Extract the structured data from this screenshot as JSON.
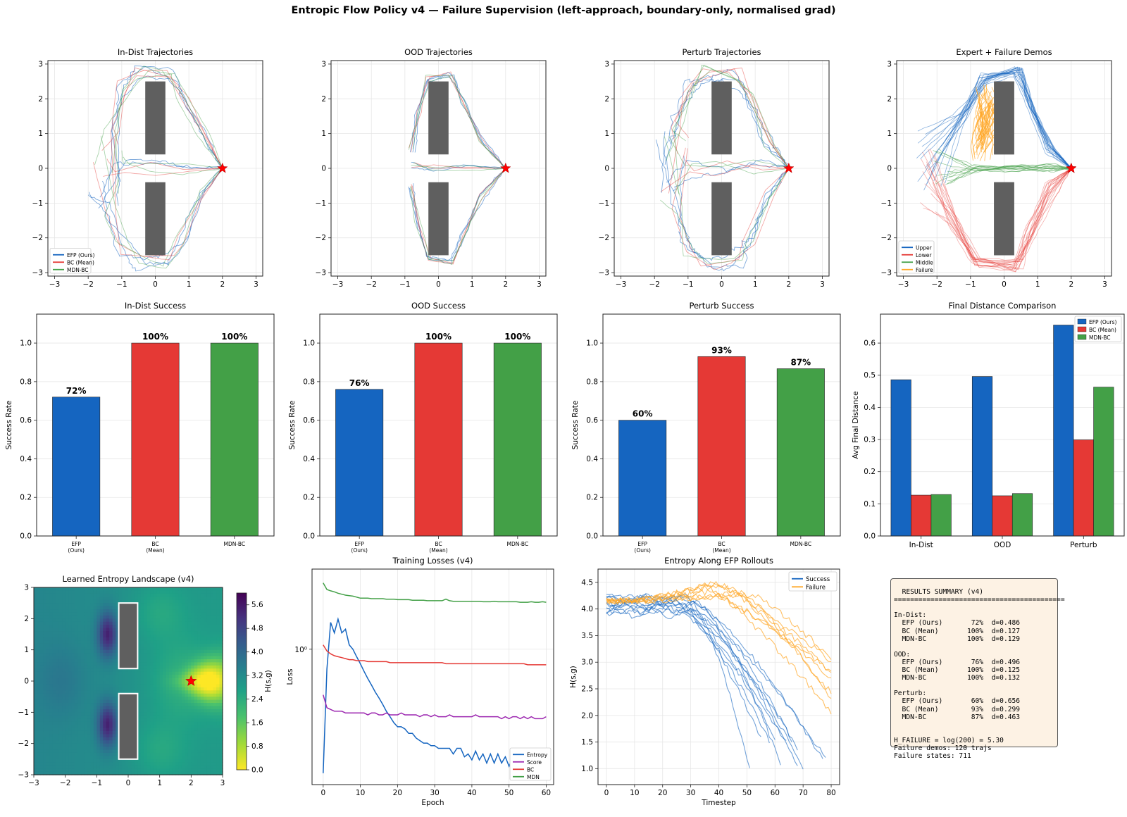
{
  "figure_title": "Entropic Flow Policy v4 — Failure Supervision (left-approach, boundary-only, normalised grad)",
  "colors": {
    "efp": "#1565c0",
    "bc": "#e53935",
    "mdn": "#43a047",
    "failure": "#ffa726",
    "obstacle": "#5f5f5f",
    "goal": "#ff0000",
    "summary_bg": "#fdf2e4",
    "mdn_loss": "#43a047",
    "score_loss": "#9c27b0"
  },
  "chart_data": [
    {
      "id": "indist-traj",
      "type": "line",
      "title": "In-Dist Trajectories",
      "xlim": [
        -3.2,
        3.2
      ],
      "ylim": [
        -3.1,
        3.1
      ],
      "xticks": [
        "−3",
        "−2",
        "−1",
        "0",
        "1",
        "2",
        "3"
      ],
      "xtick_values": [
        -3,
        -2,
        -1,
        0,
        1,
        2,
        3
      ],
      "yticks": [
        "−3",
        "−2",
        "−1",
        "0",
        "1",
        "2",
        "3"
      ],
      "ytick_values": [
        -3,
        -2,
        -1,
        0,
        1,
        2,
        3
      ],
      "grid": true,
      "legend": [
        "EFP (Ours)",
        "BC (Mean)",
        "MDN-BC"
      ],
      "legend_position": "lower-left",
      "goal": [
        2,
        0
      ],
      "obstacles": [
        [
          -0.3,
          0.4,
          0.6,
          2.1
        ],
        [
          -0.3,
          -2.5,
          0.6,
          2.1
        ]
      ]
    },
    {
      "id": "ood-traj",
      "type": "line",
      "title": "OOD Trajectories",
      "xlim": [
        -3.2,
        3.2
      ],
      "ylim": [
        -3.1,
        3.1
      ],
      "xticks": [
        "−3",
        "−2",
        "−1",
        "0",
        "1",
        "2",
        "3"
      ],
      "xtick_values": [
        -3,
        -2,
        -1,
        0,
        1,
        2,
        3
      ],
      "yticks": [
        "−3",
        "−2",
        "−1",
        "0",
        "1",
        "2",
        "3"
      ],
      "ytick_values": [
        -3,
        -2,
        -1,
        0,
        1,
        2,
        3
      ],
      "grid": true,
      "goal": [
        2,
        0
      ],
      "obstacles": [
        [
          -0.3,
          0.4,
          0.6,
          2.1
        ],
        [
          -0.3,
          -2.5,
          0.6,
          2.1
        ]
      ]
    },
    {
      "id": "perturb-traj",
      "type": "line",
      "title": "Perturb Trajectories",
      "xlim": [
        -3.2,
        3.2
      ],
      "ylim": [
        -3.1,
        3.1
      ],
      "xticks": [
        "−3",
        "−2",
        "−1",
        "0",
        "1",
        "2",
        "3"
      ],
      "xtick_values": [
        -3,
        -2,
        -1,
        0,
        1,
        2,
        3
      ],
      "yticks": [
        "−3",
        "−2",
        "−1",
        "0",
        "1",
        "2",
        "3"
      ],
      "ytick_values": [
        -3,
        -2,
        -1,
        0,
        1,
        2,
        3
      ],
      "grid": true,
      "goal": [
        2,
        0
      ],
      "obstacles": [
        [
          -0.3,
          0.4,
          0.6,
          2.1
        ],
        [
          -0.3,
          -2.5,
          0.6,
          2.1
        ]
      ]
    },
    {
      "id": "demos",
      "type": "line",
      "title": "Expert + Failure Demos",
      "xlim": [
        -3.2,
        3.2
      ],
      "ylim": [
        -3.1,
        3.1
      ],
      "xticks": [
        "−3",
        "−2",
        "−1",
        "0",
        "1",
        "2",
        "3"
      ],
      "xtick_values": [
        -3,
        -2,
        -1,
        0,
        1,
        2,
        3
      ],
      "yticks": [
        "−3",
        "−2",
        "−1",
        "0",
        "1",
        "2",
        "3"
      ],
      "ytick_values": [
        -3,
        -2,
        -1,
        0,
        1,
        2,
        3
      ],
      "grid": true,
      "legend": [
        "Upper",
        "Lower",
        "Middle",
        "Failure"
      ],
      "legend_position": "lower-left",
      "goal": [
        2,
        0
      ],
      "obstacles": [
        [
          -0.3,
          0.4,
          0.6,
          2.1
        ],
        [
          -0.3,
          -2.5,
          0.6,
          2.1
        ]
      ]
    },
    {
      "id": "indist-success",
      "type": "bar",
      "title": "In-Dist Success",
      "categories": [
        [
          "EFP",
          "(Ours)"
        ],
        [
          "BC",
          "(Mean)"
        ],
        [
          "MDN-BC"
        ]
      ],
      "values": [
        0.72,
        1.0,
        1.0
      ],
      "labels": [
        "72%",
        "100%",
        "100%"
      ],
      "ylabel": "Success Rate",
      "ylim": [
        0,
        1.15
      ],
      "yticks": [
        "0.0",
        "0.2",
        "0.4",
        "0.6",
        "0.8",
        "1.0"
      ],
      "ytick_values": [
        0,
        0.2,
        0.4,
        0.6,
        0.8,
        1.0
      ],
      "grid": true
    },
    {
      "id": "ood-success",
      "type": "bar",
      "title": "OOD Success",
      "categories": [
        [
          "EFP",
          "(Ours)"
        ],
        [
          "BC",
          "(Mean)"
        ],
        [
          "MDN-BC"
        ]
      ],
      "values": [
        0.76,
        1.0,
        1.0
      ],
      "labels": [
        "76%",
        "100%",
        "100%"
      ],
      "ylabel": "Success Rate",
      "ylim": [
        0,
        1.15
      ],
      "yticks": [
        "0.0",
        "0.2",
        "0.4",
        "0.6",
        "0.8",
        "1.0"
      ],
      "ytick_values": [
        0,
        0.2,
        0.4,
        0.6,
        0.8,
        1.0
      ],
      "grid": true
    },
    {
      "id": "perturb-success",
      "type": "bar",
      "title": "Perturb Success",
      "categories": [
        [
          "EFP",
          "(Ours)"
        ],
        [
          "BC",
          "(Mean)"
        ],
        [
          "MDN-BC"
        ]
      ],
      "values": [
        0.6,
        0.93,
        0.867
      ],
      "labels": [
        "60%",
        "93%",
        "87%"
      ],
      "ylabel": "Success Rate",
      "ylim": [
        0,
        1.15
      ],
      "yticks": [
        "0.0",
        "0.2",
        "0.4",
        "0.6",
        "0.8",
        "1.0"
      ],
      "ytick_values": [
        0,
        0.2,
        0.4,
        0.6,
        0.8,
        1.0
      ],
      "grid": true
    },
    {
      "id": "final-distance",
      "type": "bar",
      "title": "Final Distance Comparison",
      "categories": [
        "In-Dist",
        "OOD",
        "Perturb"
      ],
      "series": [
        {
          "name": "EFP (Ours)",
          "values": [
            0.486,
            0.496,
            0.656
          ]
        },
        {
          "name": "BC (Mean)",
          "values": [
            0.127,
            0.125,
            0.299
          ]
        },
        {
          "name": "MDN-BC",
          "values": [
            0.129,
            0.132,
            0.463
          ]
        }
      ],
      "ylabel": "Avg Final Distance",
      "ylim": [
        0,
        0.69
      ],
      "yticks": [
        "0.0",
        "0.1",
        "0.2",
        "0.3",
        "0.4",
        "0.5",
        "0.6"
      ],
      "ytick_values": [
        0,
        0.1,
        0.2,
        0.3,
        0.4,
        0.5,
        0.6
      ],
      "grid": true,
      "legend_position": "upper-right"
    },
    {
      "id": "entropy-landscape",
      "type": "heatmap",
      "title": "Learned Entropy Landscape (v4)",
      "xlim": [
        -3,
        3
      ],
      "ylim": [
        -3,
        3
      ],
      "xticks": [
        "−3",
        "−2",
        "−1",
        "0",
        "1",
        "2",
        "3"
      ],
      "xtick_values": [
        -3,
        -2,
        -1,
        0,
        1,
        2,
        3
      ],
      "yticks": [
        "−3",
        "−2",
        "−1",
        "0",
        "1",
        "2",
        "3"
      ],
      "ytick_values": [
        -3,
        -2,
        -1,
        0,
        1,
        2,
        3
      ],
      "colorbar_label": "H(s,g)",
      "colorbar_range": [
        0,
        6.0
      ],
      "colorbar_ticks": [
        "0.0",
        "0.8",
        "1.6",
        "2.4",
        "3.2",
        "4.0",
        "4.8",
        "5.6"
      ],
      "colorbar_tick_values": [
        0,
        0.8,
        1.6,
        2.4,
        3.2,
        4.0,
        4.8,
        5.6
      ],
      "goal": [
        2,
        0
      ],
      "obstacles": [
        [
          -0.3,
          0.4,
          0.6,
          2.1
        ],
        [
          -0.3,
          -2.5,
          0.6,
          2.1
        ]
      ]
    },
    {
      "id": "training-losses",
      "type": "line",
      "title": "Training Losses (v4)",
      "xlabel": "Epoch",
      "ylabel": "Loss",
      "log_y": true,
      "xlim": [
        -3,
        62
      ],
      "xticks": [
        "0",
        "10",
        "20",
        "30",
        "40",
        "50",
        "60"
      ],
      "xtick_values": [
        0,
        10,
        20,
        30,
        40,
        50,
        60
      ],
      "ytick_label": "10⁰",
      "ytick_value": 1.0,
      "grid": true,
      "legend_position": "lower-right",
      "series": [
        {
          "name": "Entropy",
          "values": [
            0.25,
            0.8,
            1.35,
            1.2,
            1.4,
            1.2,
            1.25,
            1.05,
            1.0,
            0.92,
            0.85,
            0.78,
            0.72,
            0.67,
            0.62,
            0.58,
            0.54,
            0.5,
            0.47,
            0.44,
            0.42,
            0.42,
            0.41,
            0.39,
            0.39,
            0.37,
            0.36,
            0.35,
            0.35,
            0.34,
            0.34,
            0.33,
            0.33,
            0.33,
            0.33,
            0.31,
            0.33,
            0.33,
            0.3,
            0.31,
            0.29,
            0.32,
            0.29,
            0.31,
            0.28,
            0.31,
            0.28,
            0.31,
            0.28,
            0.3,
            0.27,
            0.3,
            0.27,
            0.3,
            0.27,
            0.29,
            0.27,
            0.29,
            0.27,
            0.29,
            0.27
          ]
        },
        {
          "name": "Score",
          "values": [
            0.6,
            0.52,
            0.51,
            0.5,
            0.5,
            0.5,
            0.49,
            0.49,
            0.49,
            0.49,
            0.49,
            0.49,
            0.48,
            0.49,
            0.49,
            0.48,
            0.48,
            0.49,
            0.48,
            0.48,
            0.48,
            0.49,
            0.48,
            0.48,
            0.48,
            0.48,
            0.47,
            0.48,
            0.48,
            0.47,
            0.48,
            0.47,
            0.47,
            0.47,
            0.48,
            0.47,
            0.47,
            0.47,
            0.47,
            0.47,
            0.47,
            0.48,
            0.47,
            0.47,
            0.47,
            0.47,
            0.47,
            0.47,
            0.46,
            0.47,
            0.46,
            0.47,
            0.47,
            0.46,
            0.47,
            0.46,
            0.47,
            0.46,
            0.46,
            0.46,
            0.47
          ]
        },
        {
          "name": "BC",
          "values": [
            1.05,
            0.98,
            0.95,
            0.93,
            0.92,
            0.91,
            0.9,
            0.89,
            0.89,
            0.88,
            0.88,
            0.88,
            0.87,
            0.87,
            0.87,
            0.87,
            0.87,
            0.87,
            0.86,
            0.86,
            0.86,
            0.86,
            0.86,
            0.86,
            0.86,
            0.86,
            0.86,
            0.86,
            0.86,
            0.86,
            0.86,
            0.86,
            0.86,
            0.85,
            0.85,
            0.85,
            0.85,
            0.85,
            0.85,
            0.85,
            0.85,
            0.85,
            0.85,
            0.85,
            0.85,
            0.85,
            0.85,
            0.85,
            0.85,
            0.85,
            0.85,
            0.85,
            0.85,
            0.85,
            0.85,
            0.84,
            0.84,
            0.84,
            0.84,
            0.84,
            0.84
          ]
        },
        {
          "name": "MDN",
          "values": [
            2.1,
            1.95,
            1.92,
            1.9,
            1.87,
            1.85,
            1.83,
            1.82,
            1.81,
            1.79,
            1.77,
            1.77,
            1.77,
            1.76,
            1.76,
            1.76,
            1.76,
            1.75,
            1.75,
            1.75,
            1.74,
            1.74,
            1.74,
            1.74,
            1.73,
            1.73,
            1.73,
            1.73,
            1.72,
            1.72,
            1.72,
            1.72,
            1.72,
            1.75,
            1.72,
            1.71,
            1.71,
            1.71,
            1.71,
            1.71,
            1.71,
            1.71,
            1.71,
            1.7,
            1.7,
            1.7,
            1.71,
            1.7,
            1.7,
            1.7,
            1.7,
            1.7,
            1.7,
            1.69,
            1.69,
            1.69,
            1.7,
            1.69,
            1.69,
            1.7,
            1.69
          ]
        }
      ]
    },
    {
      "id": "entropy-rollouts",
      "type": "line",
      "title": "Entropy Along EFP Rollouts",
      "xlabel": "Timestep",
      "ylabel": "H(s,g)",
      "xlim": [
        -3,
        83
      ],
      "ylim": [
        0.7,
        4.75
      ],
      "xticks": [
        "0",
        "10",
        "20",
        "30",
        "40",
        "50",
        "60",
        "70",
        "80"
      ],
      "xtick_values": [
        0,
        10,
        20,
        30,
        40,
        50,
        60,
        70,
        80
      ],
      "yticks": [
        "1.0",
        "1.5",
        "2.0",
        "2.5",
        "3.0",
        "3.5",
        "4.0",
        "4.5"
      ],
      "ytick_values": [
        1.0,
        1.5,
        2.0,
        2.5,
        3.0,
        3.5,
        4.0,
        4.5
      ],
      "grid": true,
      "legend": [
        "Success",
        "Failure"
      ],
      "legend_position": "upper-right"
    }
  ],
  "summary": {
    "text": "RESULTS SUMMARY (v4)\n==========================================\n\nIn-Dist:\n  EFP (Ours)       72%  d=0.486\n  BC (Mean)       100%  d=0.127\n  MDN-BC          100%  d=0.129\n\nOOD:\n  EFP (Ours)       76%  d=0.496\n  BC (Mean)       100%  d=0.125\n  MDN-BC          100%  d=0.132\n\nPerturb:\n  EFP (Ours)       60%  d=0.656\n  BC (Mean)        93%  d=0.299\n  MDN-BC           87%  d=0.463\n\n\nH_FAILURE = log(200) = 5.30\nFailure demos: 120 trajs\nFailure states: 711"
  }
}
